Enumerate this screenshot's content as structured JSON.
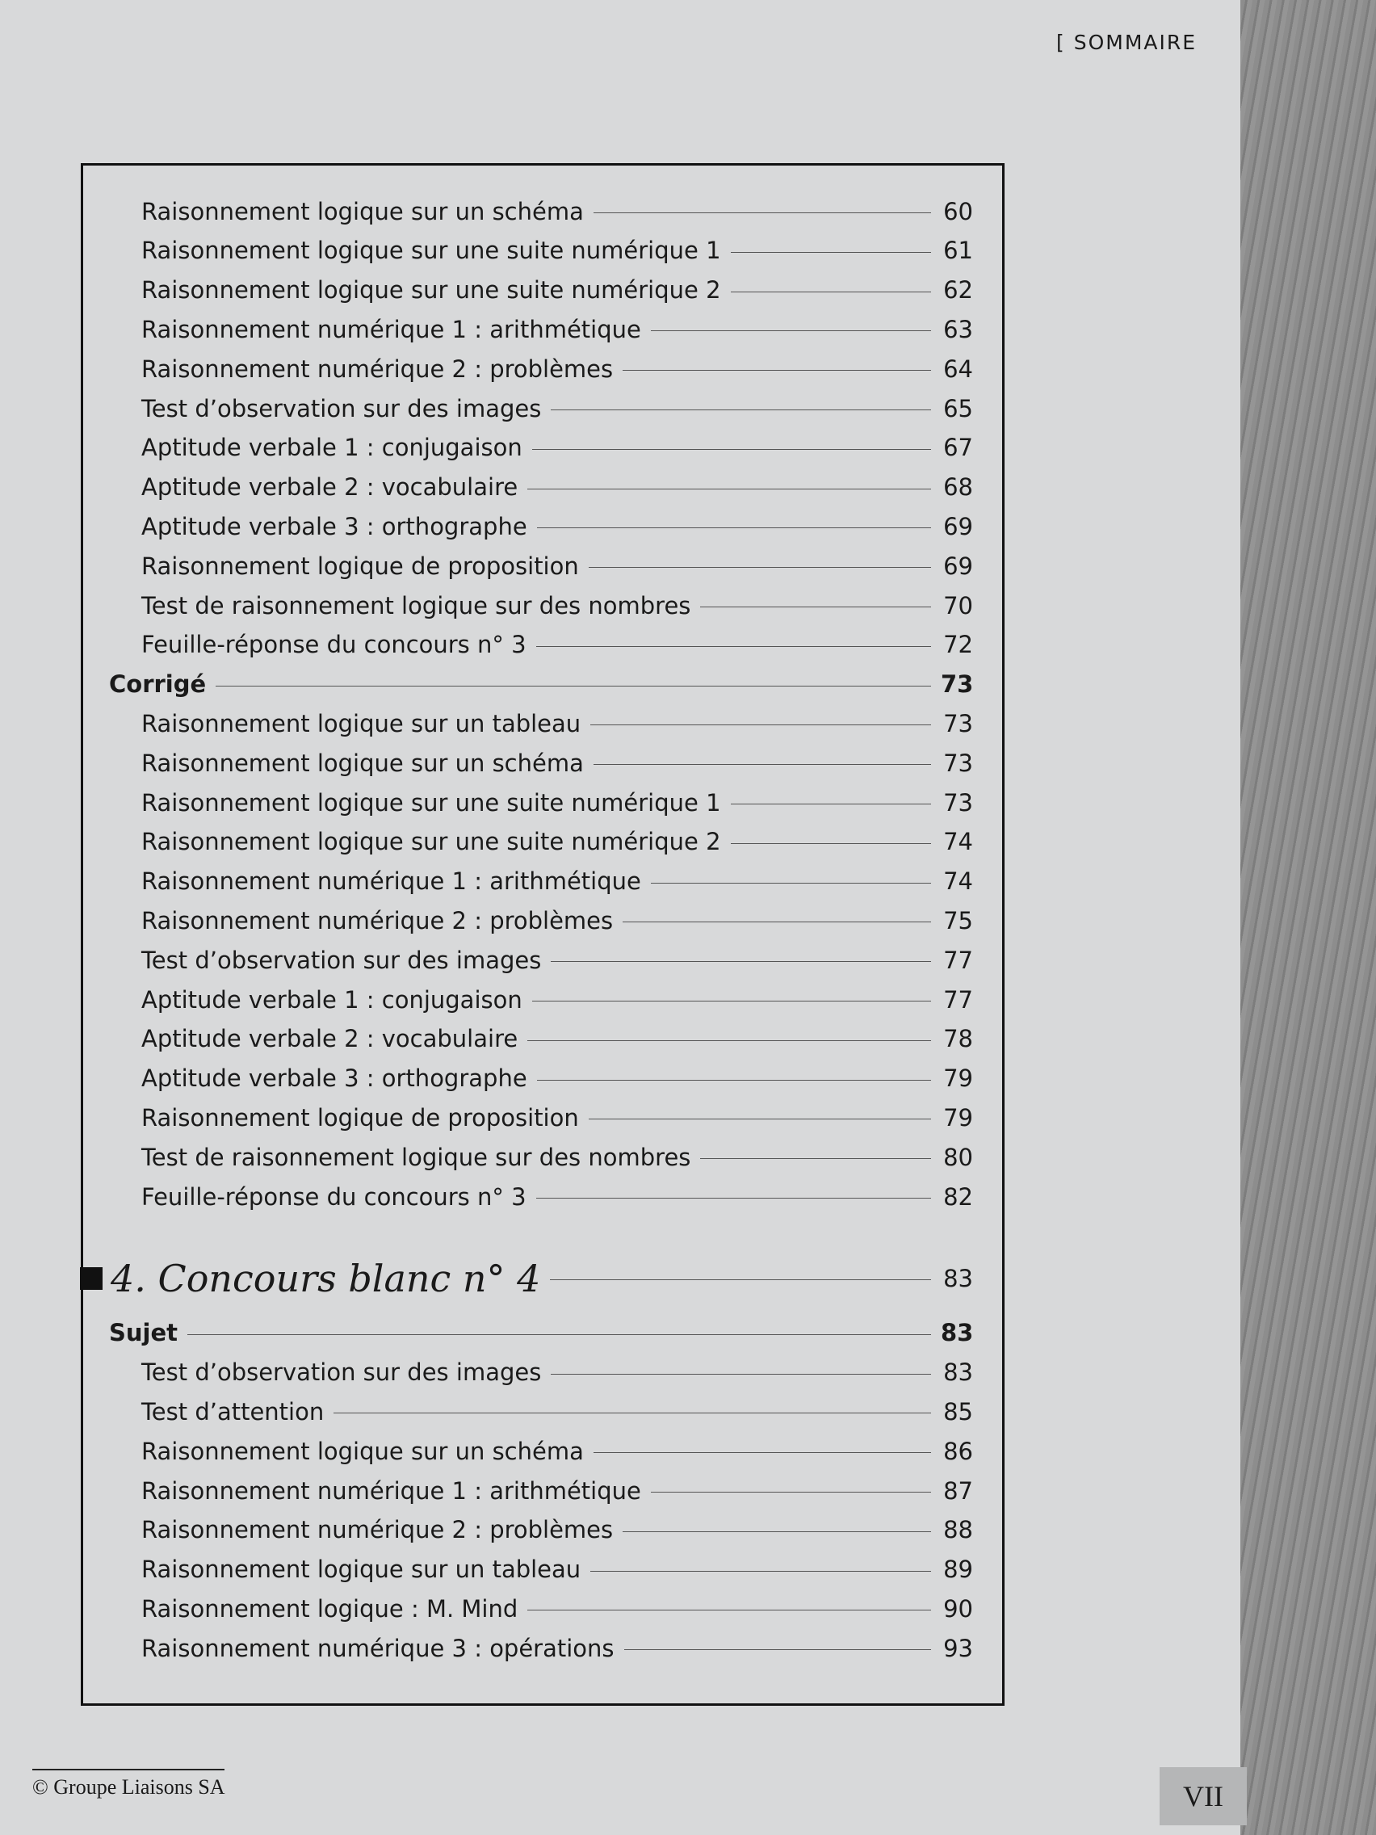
{
  "header": {
    "title": "SOMMAIRE"
  },
  "toc": {
    "blocks": [
      {
        "items": [
          {
            "label": "Raisonnement logique sur un schéma",
            "page": 60
          },
          {
            "label": "Raisonnement logique sur une suite numérique 1",
            "page": 61
          },
          {
            "label": "Raisonnement logique sur une suite numérique 2",
            "page": 62
          },
          {
            "label": "Raisonnement numérique 1 : arithmétique",
            "page": 63
          },
          {
            "label": "Raisonnement numérique 2 : problèmes",
            "page": 64
          },
          {
            "label": "Test d’observation sur des images",
            "page": 65
          },
          {
            "label": "Aptitude verbale 1 : conjugaison",
            "page": 67
          },
          {
            "label": "Aptitude verbale 2 : vocabulaire",
            "page": 68
          },
          {
            "label": "Aptitude verbale 3 : orthographe",
            "page": 69
          },
          {
            "label": "Raisonnement logique de proposition",
            "page": 69
          },
          {
            "label": "Test de raisonnement logique sur des nombres",
            "page": 70
          },
          {
            "label": "Feuille-réponse du concours n° 3",
            "page": 72
          }
        ]
      },
      {
        "title": "Corrigé",
        "page": 73,
        "items": [
          {
            "label": "Raisonnement logique sur un tableau",
            "page": 73
          },
          {
            "label": "Raisonnement logique sur un schéma",
            "page": 73
          },
          {
            "label": "Raisonnement logique sur une suite numérique 1",
            "page": 73
          },
          {
            "label": "Raisonnement logique sur une suite numérique 2",
            "page": 74
          },
          {
            "label": "Raisonnement numérique 1 : arithmétique",
            "page": 74
          },
          {
            "label": "Raisonnement numérique 2 : problèmes",
            "page": 75
          },
          {
            "label": "Test d’observation sur des images",
            "page": 77
          },
          {
            "label": "Aptitude verbale 1 : conjugaison",
            "page": 77
          },
          {
            "label": "Aptitude verbale 2 : vocabulaire",
            "page": 78
          },
          {
            "label": "Aptitude verbale 3 : orthographe",
            "page": 79
          },
          {
            "label": "Raisonnement logique de proposition",
            "page": 79
          },
          {
            "label": "Test de raisonnement logique sur des nombres",
            "page": 80
          },
          {
            "label": "Feuille-réponse du concours n° 3",
            "page": 82
          }
        ]
      },
      {
        "chapter": "4. Concours blanc n° 4",
        "page": 83
      },
      {
        "title": "Sujet",
        "page": 83,
        "items": [
          {
            "label": "Test d’observation sur des images",
            "page": 83
          },
          {
            "label": "Test d’attention",
            "page": 85
          },
          {
            "label": "Raisonnement logique sur un schéma",
            "page": 86
          },
          {
            "label": "Raisonnement numérique 1 : arithmétique",
            "page": 87
          },
          {
            "label": "Raisonnement numérique 2 : problèmes",
            "page": 88
          },
          {
            "label": "Raisonnement logique sur un tableau",
            "page": 89
          },
          {
            "label": "Raisonnement logique : M. Mind",
            "page": 90
          },
          {
            "label": "Raisonnement numérique 3 : opérations",
            "page": 93
          }
        ]
      }
    ]
  },
  "footer": {
    "copyright": "© Groupe Liaisons SA",
    "page_number": "VII"
  }
}
